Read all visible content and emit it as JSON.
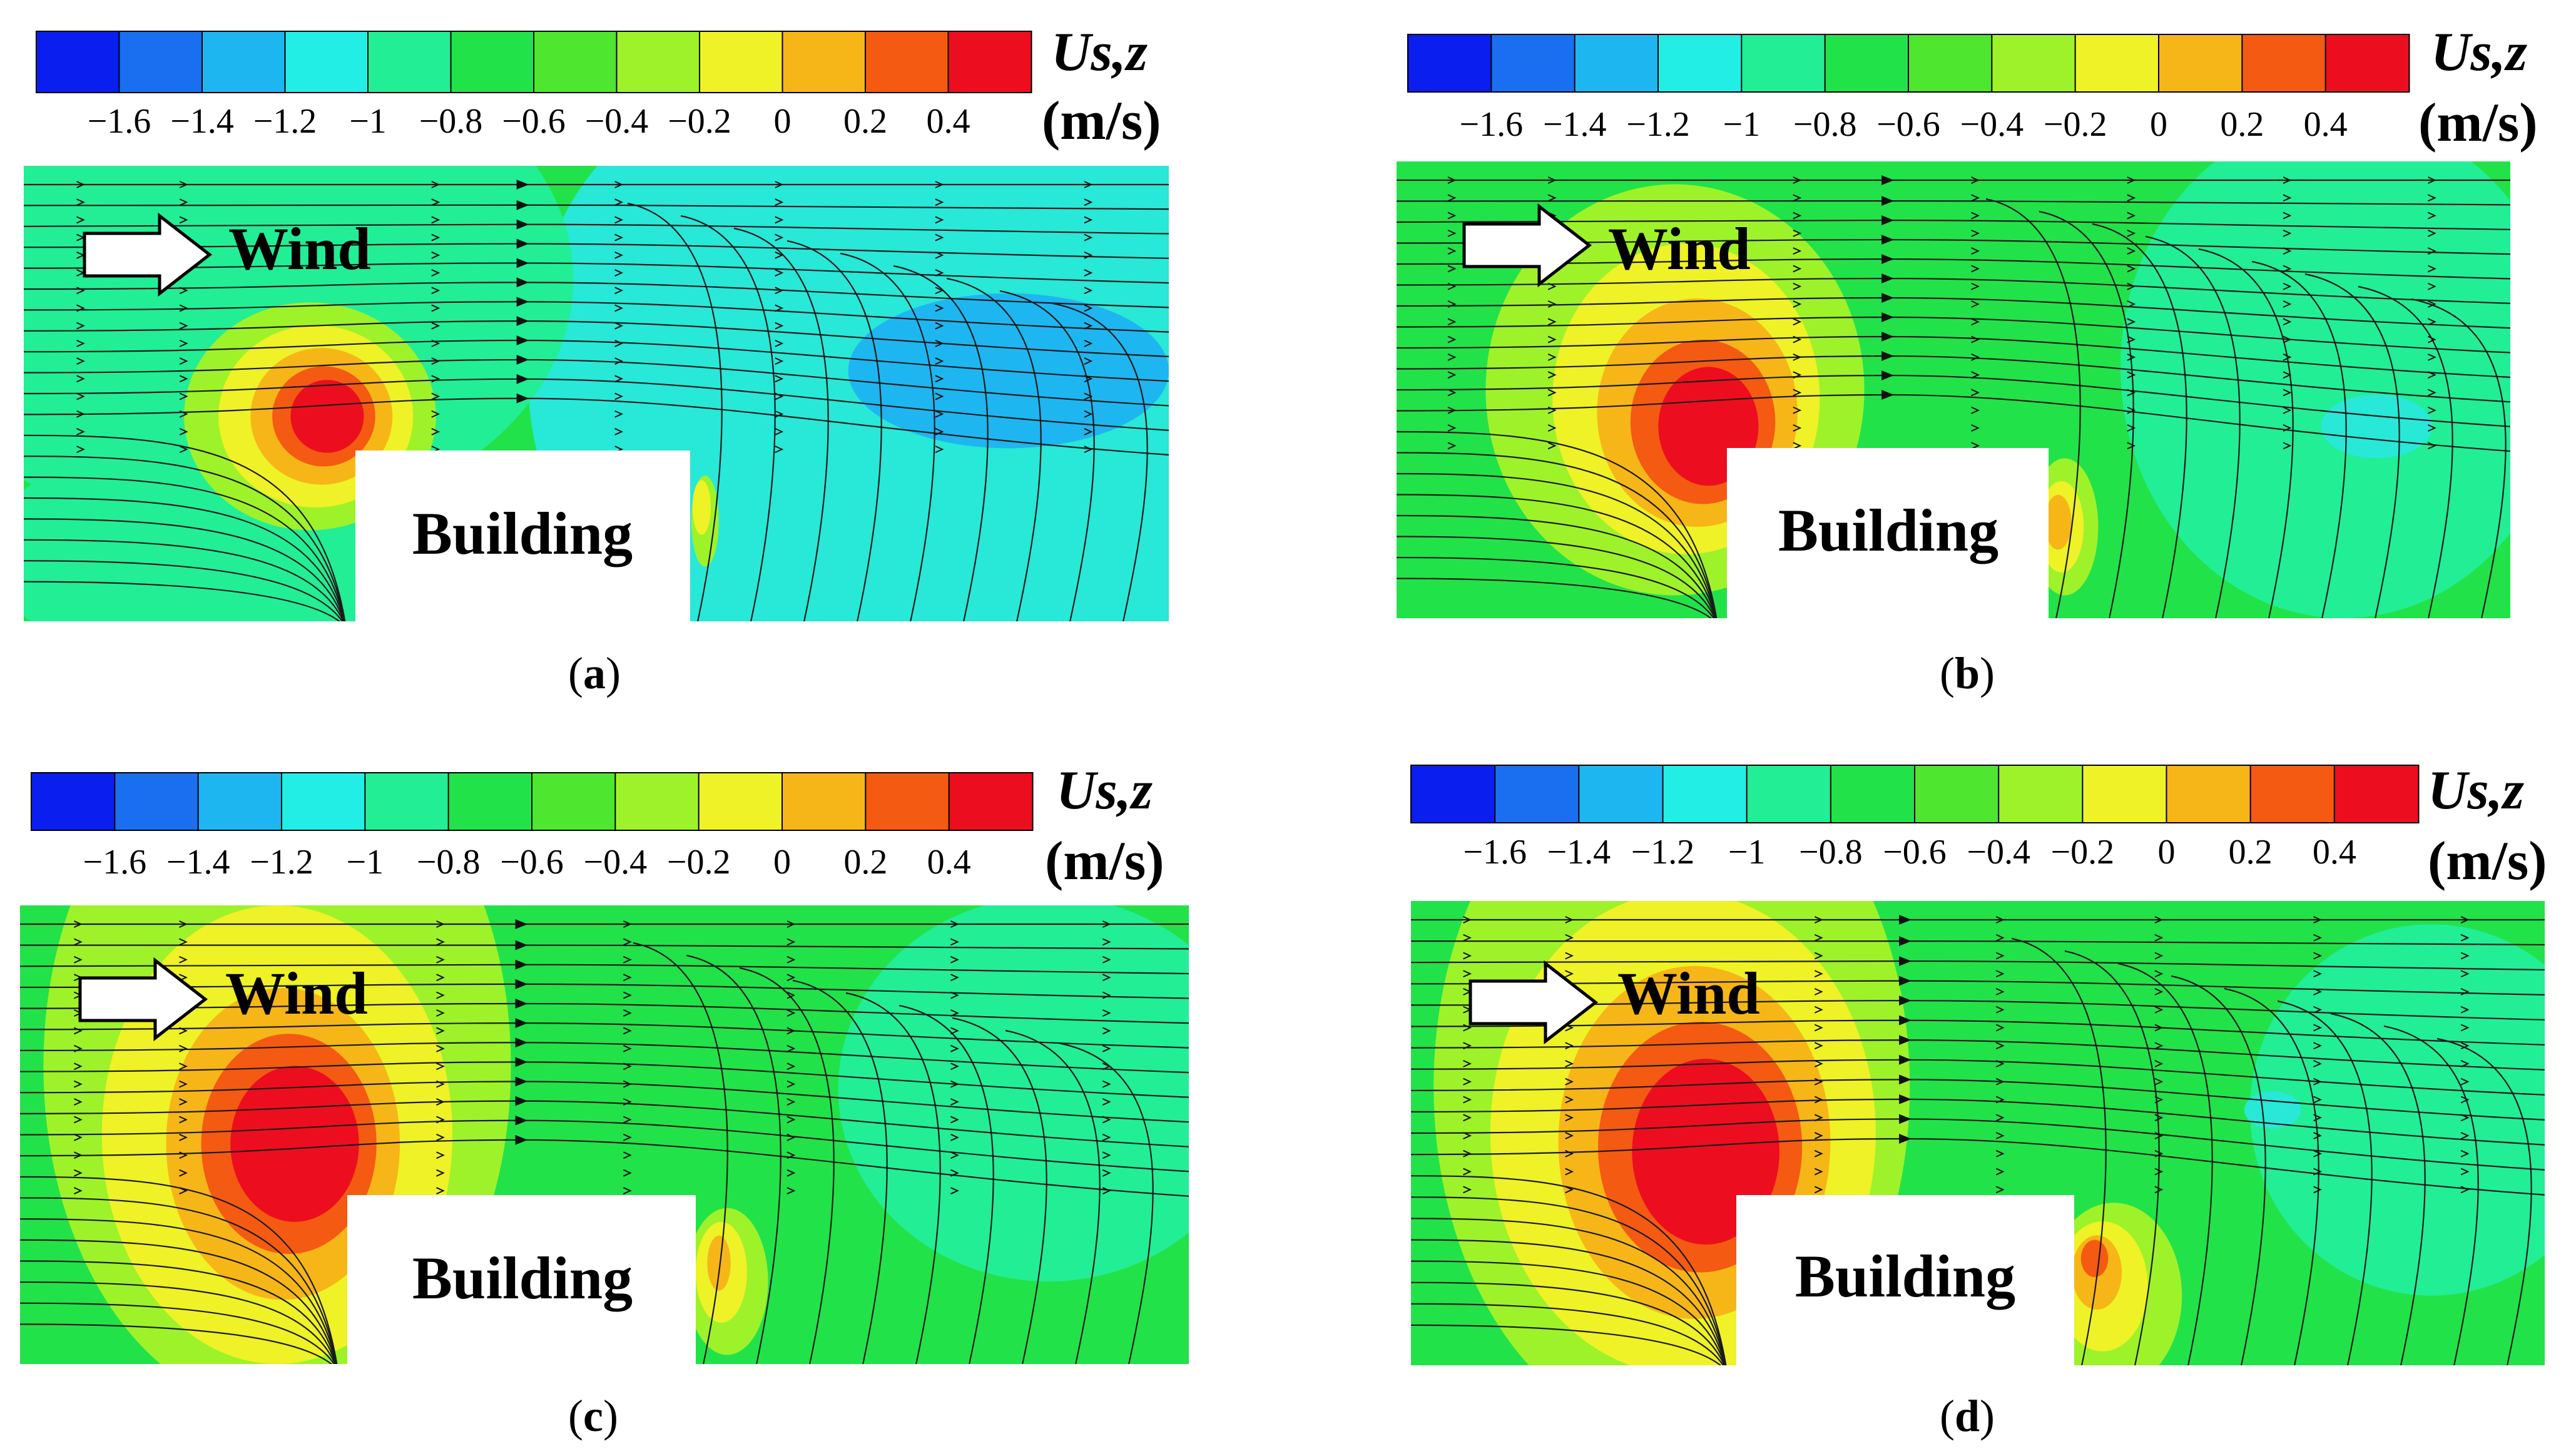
{
  "colorbar": {
    "ticks": [
      "−1.6",
      "−1.4",
      "−1.2",
      "−1",
      "−0.8",
      "−0.6",
      "−0.4",
      "−0.2",
      "0",
      "0.2",
      "0.4"
    ],
    "colors": [
      "#0a1ef0",
      "#1a6ff0",
      "#1eb6f0",
      "#23eee6",
      "#22ee96",
      "#22e24a",
      "#4ee62e",
      "#9ef22a",
      "#eef226",
      "#f6b618",
      "#f45a12",
      "#ec0e1e"
    ],
    "quantity": "Us,z",
    "unit": "(m/s)"
  },
  "field_colors": {
    "blue": "#1eb6f0",
    "cyan": "#28e8d8",
    "teal": "#22ee96",
    "green": "#22e24a",
    "lime": "#9ef22a",
    "yellow": "#eef226",
    "orange": "#f6b618",
    "red_orange": "#f45a12",
    "red": "#ec0e1e"
  },
  "panels": [
    {
      "caption": "a",
      "wind_label": "Wind",
      "building_label": "Building"
    },
    {
      "caption": "b",
      "wind_label": "Wind",
      "building_label": "Building"
    },
    {
      "caption": "c",
      "wind_label": "Wind",
      "building_label": "Building"
    },
    {
      "caption": "d",
      "wind_label": "Wind",
      "building_label": "Building"
    }
  ]
}
